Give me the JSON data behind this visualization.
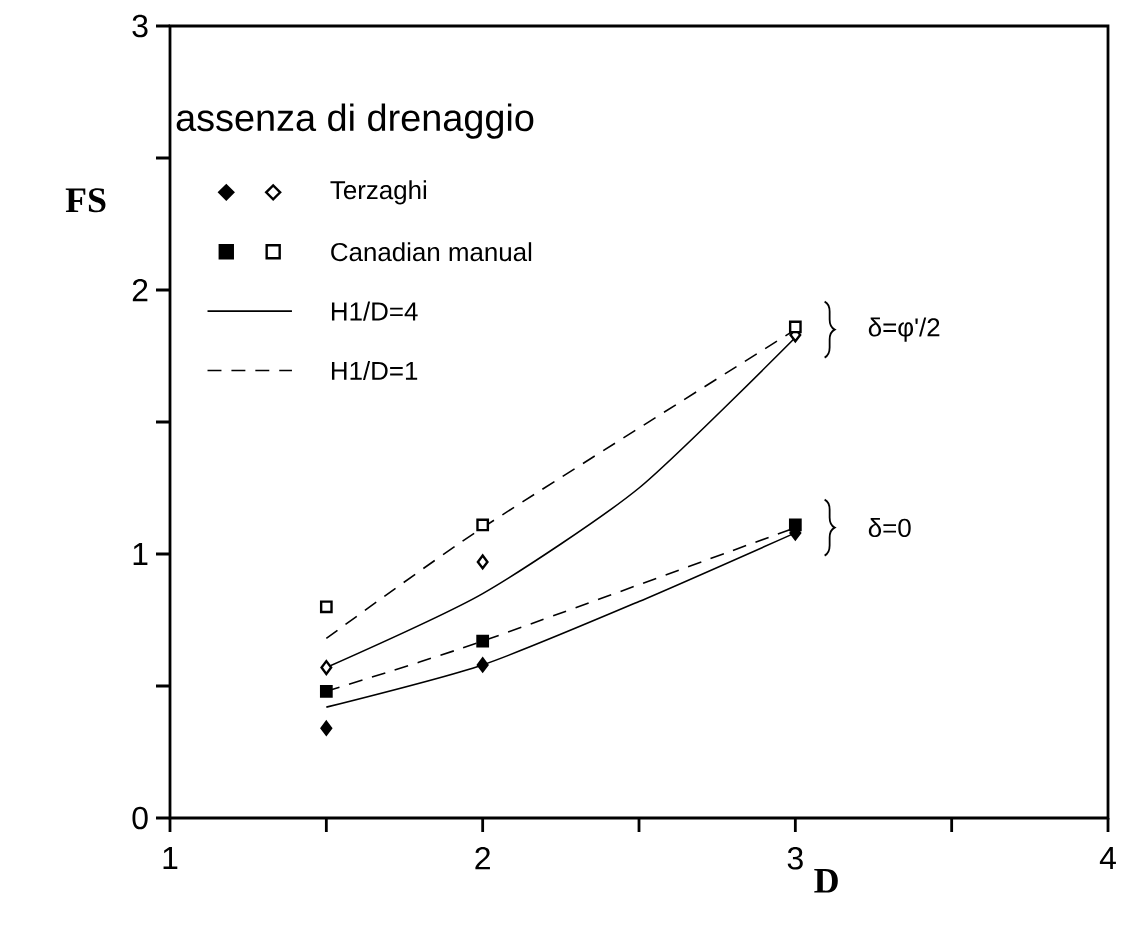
{
  "chart_data": {
    "type": "scatter",
    "xlabel": "D",
    "ylabel": "FS",
    "xlim": [
      1,
      4
    ],
    "ylim": [
      0,
      3
    ],
    "xticks": [
      1,
      {
        "value": 1.5,
        "label": null
      },
      2,
      {
        "value": 2.5,
        "label": null
      },
      3,
      {
        "value": 3.5,
        "label": null
      },
      4
    ],
    "yticks": [
      0,
      {
        "value": 0.5,
        "label": null
      },
      1,
      {
        "value": 1.5,
        "label": null
      },
      2,
      {
        "value": 2.5,
        "label": null
      },
      3
    ],
    "grid": false,
    "legend": "top left",
    "annotations": [
      "assenza di drenaggio",
      {
        "text": "δ=φ'/2",
        "x": 3,
        "y": 1.85
      },
      {
        "text": "δ=0",
        "x": 3,
        "y": 1.1
      }
    ],
    "series": [
      {
        "marker": "diamond",
        "color": "#000000",
        "x": [
          1.5,
          2,
          3
        ],
        "values": [
          0.34,
          0.58,
          1.08
        ]
      },
      {
        "name": "Terzaghi",
        "marker": "diamond",
        "color": "#ffffff",
        "x": [
          1.5,
          2,
          3
        ],
        "values": [
          0.57,
          0.97,
          1.83
        ]
      },
      {
        "marker": "square",
        "color": "#000000",
        "x": [
          1.5,
          2,
          3
        ],
        "values": [
          0.48,
          0.67,
          1.11
        ]
      },
      {
        "name": "Canadian manual",
        "marker": "square",
        "color": "#ffffff",
        "x": [
          1.5,
          2,
          3
        ],
        "values": [
          0.8,
          1.11,
          1.86
        ]
      },
      {
        "name": "H1/D=4",
        "type": "line",
        "line_style": "solid",
        "color": "#000000",
        "x": [
          1.5,
          2,
          2.5,
          3
        ],
        "values": [
          0.57,
          0.85,
          1.25,
          1.82
        ]
      },
      {
        "type": "line",
        "line_style": "solid",
        "color": "#000000",
        "x": [
          1.5,
          2,
          2.5,
          3
        ],
        "values": [
          0.42,
          0.58,
          0.82,
          1.08
        ]
      },
      {
        "name": "H1/D=1",
        "type": "line",
        "line_style": "dashed",
        "color": "#000000",
        "x": [
          1.5,
          2,
          3
        ],
        "values": [
          0.68,
          1.1,
          1.85
        ]
      },
      {
        "type": "line",
        "line_style": "dashed",
        "color": "#000000",
        "x": [
          1.5,
          2,
          3
        ],
        "values": [
          0.48,
          0.67,
          1.1
        ]
      }
    ]
  }
}
